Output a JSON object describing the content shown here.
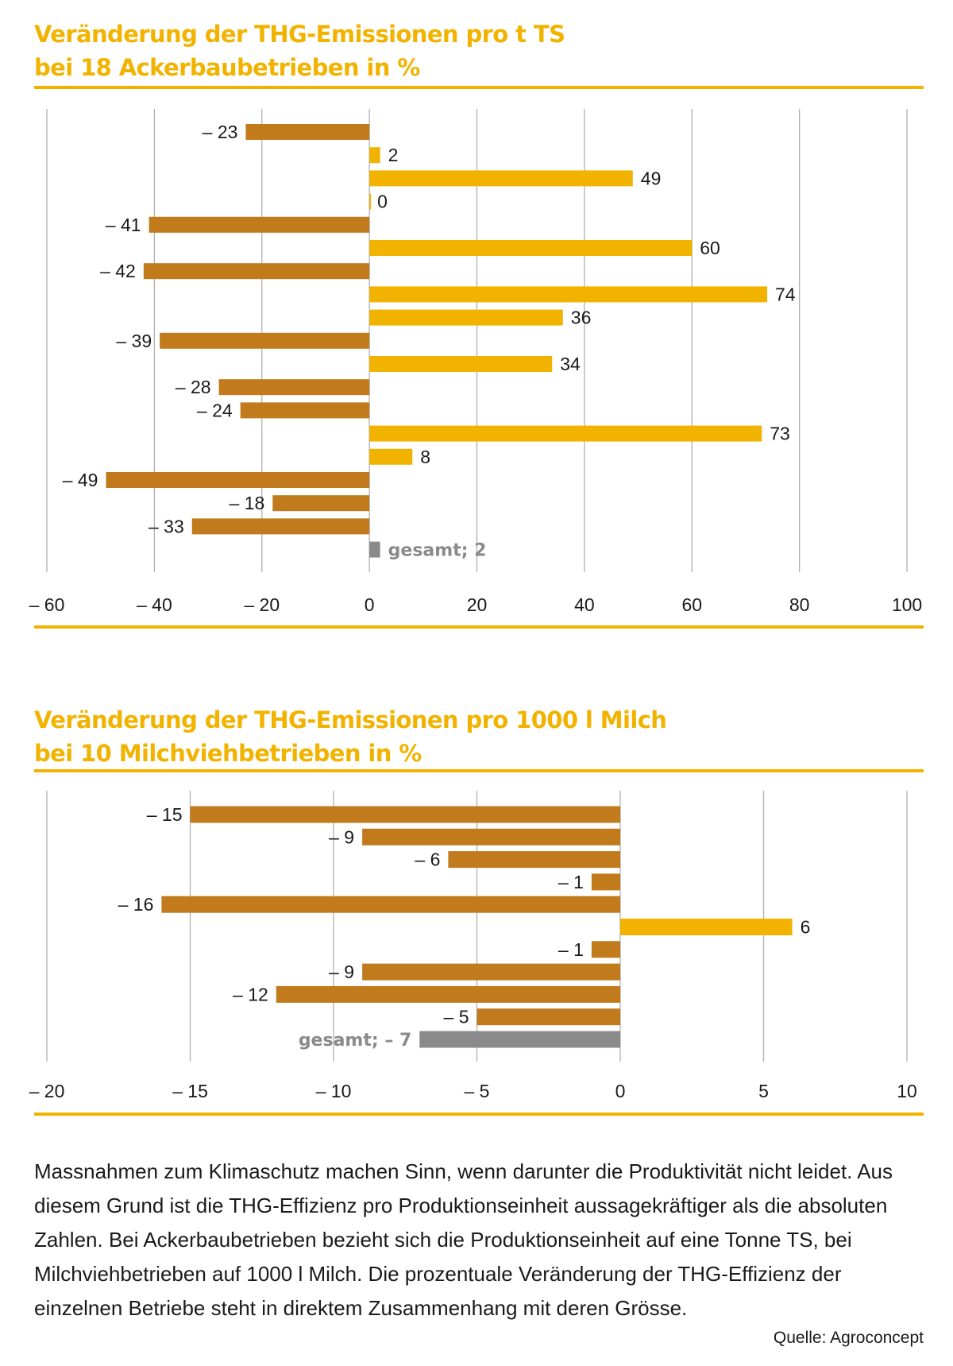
{
  "colors": {
    "accent": "#f2b300",
    "negative_bar": "#c17a1c",
    "positive_bar": "#f2b300",
    "total_bar": "#8a8a8a",
    "gridline": "#b0b0b0",
    "text": "#1a1a1a",
    "total_label": "#8a8a8a"
  },
  "chart_data": [
    {
      "type": "bar",
      "orientation": "horizontal",
      "title_line1": "Veränderung der THG-Emissionen pro t TS",
      "title_line2": "bei 18 Ackerbaubetrieben in %",
      "values": [
        -23,
        2,
        49,
        0,
        -41,
        60,
        -42,
        74,
        36,
        -39,
        34,
        -28,
        -24,
        73,
        8,
        -49,
        -18,
        -33
      ],
      "labels": [
        "– 23",
        "2",
        "49",
        "0",
        "– 41",
        "60",
        "– 42",
        "74",
        "36",
        "– 39",
        "34",
        "– 28",
        "– 24",
        "73",
        "8",
        "– 49",
        "– 18",
        "– 33"
      ],
      "total": {
        "value": 2,
        "label": "gesamt; 2"
      },
      "xlim": [
        -60,
        100
      ],
      "ticks": [
        -60,
        -40,
        -20,
        0,
        20,
        40,
        60,
        80,
        100
      ],
      "tick_labels": [
        "– 60",
        "– 40",
        "– 20",
        "0",
        "20",
        "40",
        "60",
        "80",
        "100"
      ],
      "grid": true
    },
    {
      "type": "bar",
      "orientation": "horizontal",
      "title_line1": "Veränderung der THG-Emissionen pro 1000 l Milch",
      "title_line2": "bei 10 Milchviehbetrieben in %",
      "values": [
        -15,
        -9,
        -6,
        -1,
        -16,
        6,
        -1,
        -9,
        -12,
        -5
      ],
      "labels": [
        "– 15",
        "– 9",
        "– 6",
        "– 1",
        "– 16",
        "6",
        "– 1",
        "– 9",
        "– 12",
        "– 5"
      ],
      "total": {
        "value": -7,
        "label": "gesamt; – 7"
      },
      "xlim": [
        -20,
        10
      ],
      "ticks": [
        -20,
        -15,
        -10,
        -5,
        0,
        5,
        10
      ],
      "tick_labels": [
        "– 20",
        "– 15",
        "– 10",
        "– 5",
        "0",
        "5",
        "10"
      ],
      "grid": true
    }
  ],
  "caption": "Massnahmen zum Klimaschutz machen Sinn, wenn darunter die Produktivität nicht leidet. Aus diesem Grund ist die THG-Effizienz pro Produktionseinheit aussagekräftiger als die absoluten Zahlen. Bei Ackerbaubetrieben bezieht sich die Produktionseinheit auf eine Tonne TS, bei Milchviehbetrieben auf 1000 l Milch. Die prozentuale Veränderung der THG-Effizienz der einzelnen Betriebe steht in direktem Zusammenhang mit deren Grösse.",
  "source": "Quelle: Agroconcept"
}
